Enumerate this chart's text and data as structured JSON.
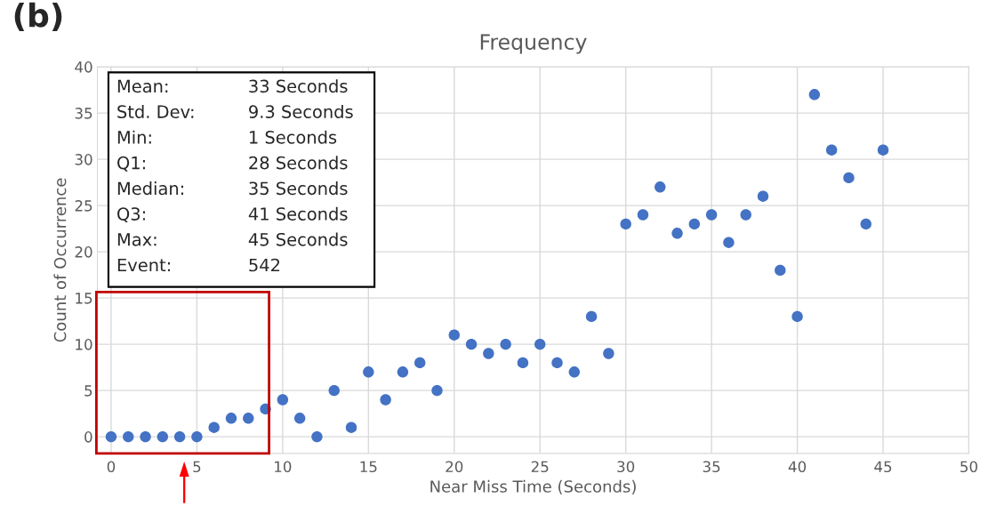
{
  "chart_data": {
    "type": "scatter",
    "title": "Frequency",
    "xlabel": "Near Miss Time (Seconds)",
    "ylabel": "Count of Occurrence",
    "x": [
      0,
      1,
      2,
      3,
      4,
      5,
      6,
      7,
      8,
      9,
      10,
      11,
      12,
      13,
      14,
      15,
      16,
      17,
      18,
      19,
      20,
      21,
      22,
      23,
      24,
      25,
      26,
      27,
      28,
      29,
      30,
      31,
      32,
      33,
      34,
      35,
      36,
      37,
      38,
      39,
      40,
      41,
      42,
      43,
      44,
      45
    ],
    "values": [
      0,
      0,
      0,
      0,
      0,
      0,
      1,
      2,
      2,
      3,
      4,
      2,
      0,
      5,
      1,
      7,
      4,
      7,
      8,
      5,
      11,
      10,
      9,
      10,
      8,
      10,
      8,
      7,
      13,
      9,
      23,
      24,
      27,
      22,
      23,
      24,
      21,
      24,
      26,
      18,
      13,
      37,
      31,
      28,
      23,
      31
    ],
    "color": "#4472c4",
    "marker": "circle",
    "xlim": [
      -0.8,
      50
    ],
    "xticks": [
      0,
      5,
      10,
      15,
      20,
      25,
      30,
      35,
      40,
      45,
      50
    ],
    "ylim": [
      -1.8,
      40
    ],
    "yticks": [
      0,
      5,
      10,
      15,
      20,
      25,
      30,
      35,
      40
    ],
    "grid": true,
    "annotations": [
      "(b)",
      "Mean:",
      "33 Seconds",
      "Std. Dev:",
      "9.3 Seconds",
      "Min:",
      "1 Seconds",
      "Q1:",
      "28 Seconds",
      "Median:",
      "35 Seconds",
      "Q3:",
      "41 Seconds",
      "Max:",
      "45 Seconds",
      "Event:",
      "542"
    ]
  }
}
